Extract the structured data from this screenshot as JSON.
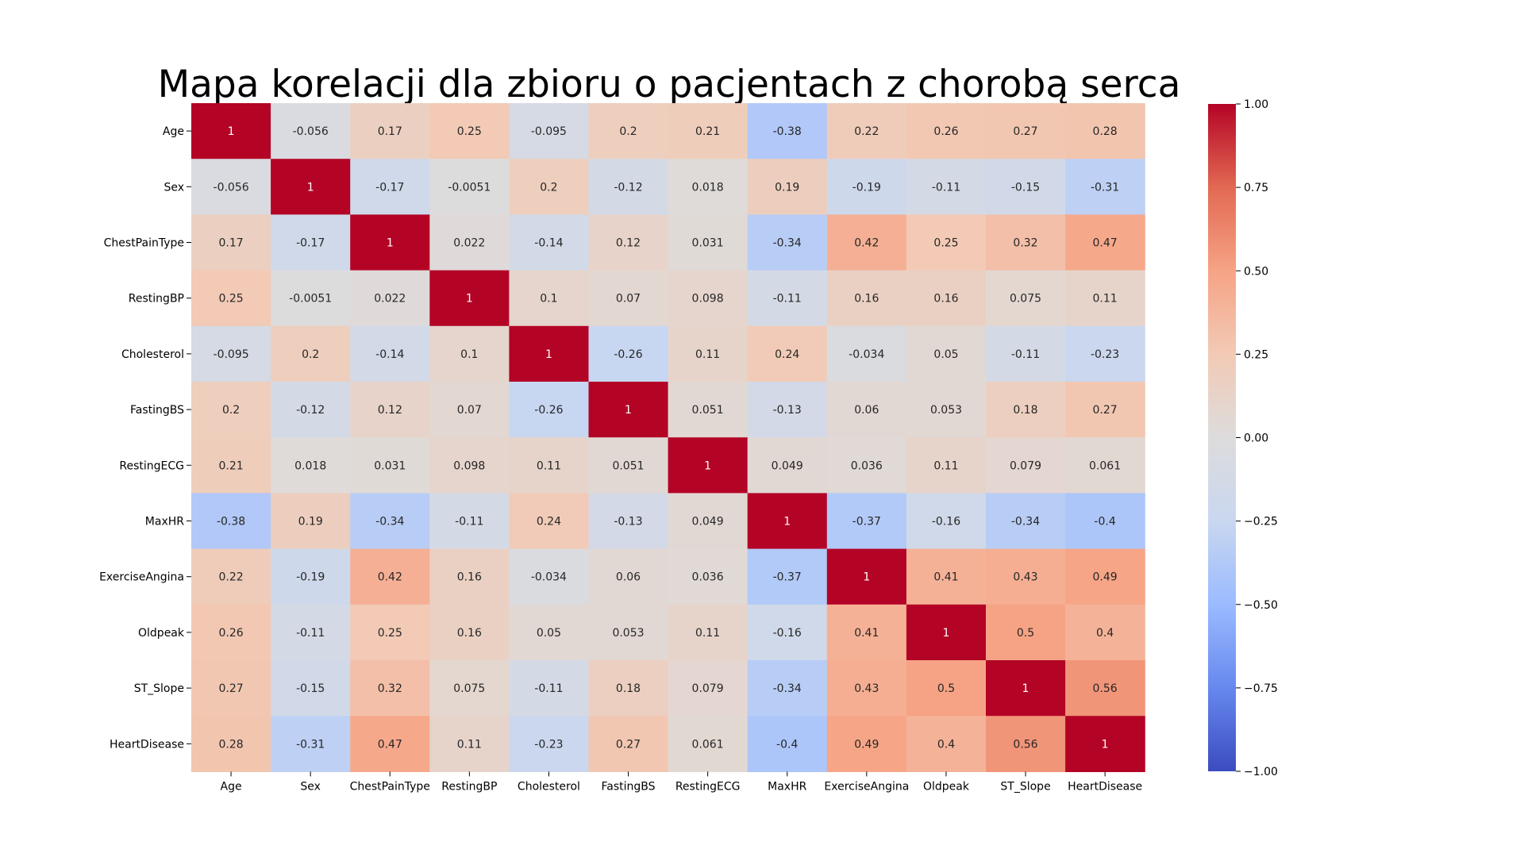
{
  "chart_data": {
    "type": "heatmap",
    "title": "Mapa korelacji dla zbioru o pacjentach z chorobą serca",
    "xlabel": "",
    "ylabel": "",
    "colormap": "coolwarm",
    "colormap_stops": [
      "#3b4cc0",
      "#6788ee",
      "#9abbff",
      "#c9d7f0",
      "#dddcdc",
      "#f2cab5",
      "#f6a385",
      "#e26952",
      "#b40426"
    ],
    "vmin": -1.0,
    "vmax": 1.0,
    "colorbar_ticks": [
      "1.00",
      "0.75",
      "0.50",
      "0.25",
      "0.00",
      "−0.25",
      "−0.50",
      "−0.75",
      "−1.00"
    ],
    "colorbar_tick_values": [
      1.0,
      0.75,
      0.5,
      0.25,
      0.0,
      -0.25,
      -0.5,
      -0.75,
      -1.0
    ],
    "x_labels": [
      "Age",
      "Sex",
      "ChestPainType",
      "RestingBP",
      "Cholesterol",
      "FastingBS",
      "RestingECG",
      "MaxHR",
      "ExerciseAngina",
      "Oldpeak",
      "ST_Slope",
      "HeartDisease"
    ],
    "y_labels": [
      "Age",
      "Sex",
      "ChestPainType",
      "RestingBP",
      "Cholesterol",
      "FastingBS",
      "RestingECG",
      "MaxHR",
      "ExerciseAngina",
      "Oldpeak",
      "ST_Slope",
      "HeartDisease"
    ],
    "annotations": [
      [
        "1",
        "-0.056",
        "0.17",
        "0.25",
        "-0.095",
        "0.2",
        "0.21",
        "-0.38",
        "0.22",
        "0.26",
        "0.27",
        "0.28"
      ],
      [
        "-0.056",
        "1",
        "-0.17",
        "-0.0051",
        "0.2",
        "-0.12",
        "0.018",
        "0.19",
        "-0.19",
        "-0.11",
        "-0.15",
        "-0.31"
      ],
      [
        "0.17",
        "-0.17",
        "1",
        "0.022",
        "-0.14",
        "0.12",
        "0.031",
        "-0.34",
        "0.42",
        "0.25",
        "0.32",
        "0.47"
      ],
      [
        "0.25",
        "-0.0051",
        "0.022",
        "1",
        "0.1",
        "0.07",
        "0.098",
        "-0.11",
        "0.16",
        "0.16",
        "0.075",
        "0.11"
      ],
      [
        "-0.095",
        "0.2",
        "-0.14",
        "0.1",
        "1",
        "-0.26",
        "0.11",
        "0.24",
        "-0.034",
        "0.05",
        "-0.11",
        "-0.23"
      ],
      [
        "0.2",
        "-0.12",
        "0.12",
        "0.07",
        "-0.26",
        "1",
        "0.051",
        "-0.13",
        "0.06",
        "0.053",
        "0.18",
        "0.27"
      ],
      [
        "0.21",
        "0.018",
        "0.031",
        "0.098",
        "0.11",
        "0.051",
        "1",
        "0.049",
        "0.036",
        "0.11",
        "0.079",
        "0.061"
      ],
      [
        "-0.38",
        "0.19",
        "-0.34",
        "-0.11",
        "0.24",
        "-0.13",
        "0.049",
        "1",
        "-0.37",
        "-0.16",
        "-0.34",
        "-0.4"
      ],
      [
        "0.22",
        "-0.19",
        "0.42",
        "0.16",
        "-0.034",
        "0.06",
        "0.036",
        "-0.37",
        "1",
        "0.41",
        "0.43",
        "0.49"
      ],
      [
        "0.26",
        "-0.11",
        "0.25",
        "0.16",
        "0.05",
        "0.053",
        "0.11",
        "-0.16",
        "0.41",
        "1",
        "0.5",
        "0.4"
      ],
      [
        "0.27",
        "-0.15",
        "0.32",
        "0.075",
        "-0.11",
        "0.18",
        "0.079",
        "-0.34",
        "0.43",
        "0.5",
        "1",
        "0.56"
      ],
      [
        "0.28",
        "-0.31",
        "0.47",
        "0.11",
        "-0.23",
        "0.27",
        "0.061",
        "-0.4",
        "0.49",
        "0.4",
        "0.56",
        "1"
      ]
    ],
    "colorbar": true,
    "grid": false
  }
}
